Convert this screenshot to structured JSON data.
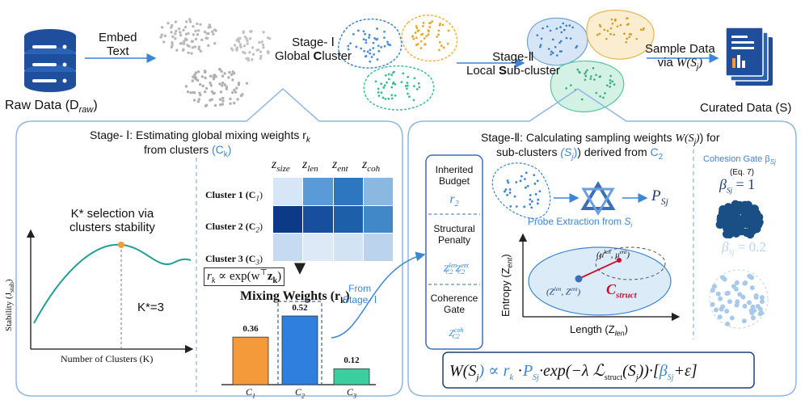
{
  "colors": {
    "accent_blue": "#3b86d6",
    "dark_blue": "#1f4e9c",
    "orange": "#f59a3a",
    "bar_blue": "#2f7fde",
    "teal": "#3bcf9f",
    "red": "#c8102e"
  },
  "top": {
    "raw_data_label": "Raw Data (D",
    "raw_data_sub": "raw",
    "embed_text": [
      "Embed",
      "Text"
    ],
    "stage1_title": "Stage- Ⅰ",
    "stage1_sub_prefix": "Global ",
    "stage1_sub_bold": "C",
    "stage1_sub_rest": "luster",
    "stage2_title": "Stage-Ⅱ",
    "stage2_sub_prefix": "Local ",
    "stage2_sub_bold": "S",
    "stage2_sub_rest": "ub-cluster",
    "sample_data": "Sample Data",
    "via": "via",
    "via_formula": "W(S",
    "via_sub": "j",
    "curated_label": "Curated Data (S)"
  },
  "stage1": {
    "heading_line1": "Stage- Ⅰ: Estimating global  mixing weights r",
    "heading_sub": "k",
    "heading_line2": "from clusters",
    "heading_ck": "(C",
    "heading_ck_sub": "k",
    "k_selection": [
      "K* selection via",
      "clusters stability"
    ],
    "y_axis": "Stability (J",
    "y_axis_sub": "stab",
    "x_axis": "Number of Clusters (K)",
    "kstar": "K*=3",
    "columns": [
      "z",
      "z",
      "z",
      "z"
    ],
    "column_subs": [
      "size",
      "len",
      "ent",
      "coh"
    ],
    "rows": [
      "Cluster 1 (C",
      "Cluster 2 (C",
      "Cluster 3 (C"
    ],
    "row_subs": [
      "1",
      "2",
      "3"
    ],
    "heat_colors": [
      [
        "#d7e6f6",
        "#5a9ad6",
        "#2d76c0",
        "#8ab8e0"
      ],
      [
        "#0d3a86",
        "#174f9e",
        "#1e5faa",
        "#4088c8"
      ],
      [
        "#c6daf1",
        "#dde9f6",
        "#d2e3f4",
        "#bcd3ed"
      ]
    ],
    "formula": "r",
    "formula_rest": "∝ exp(w",
    "formula_end": "z",
    "mixing_title": "Mixing Weights (r",
    "mixing_sub": "k",
    "bars": [
      {
        "label": "C",
        "sub": "1",
        "value": 0.36,
        "value_text": "0.36",
        "color": "#f59a3a"
      },
      {
        "label": "C",
        "sub": "2",
        "value": 0.52,
        "value_text": "0.52",
        "color": "#2f7fde"
      },
      {
        "label": "C",
        "sub": "3",
        "value": 0.12,
        "value_text": "0.12",
        "color": "#3bcf9f"
      }
    ],
    "from_stage": [
      "From",
      "Stage- Ⅰ"
    ]
  },
  "stage2": {
    "heading_line1": "Stage-Ⅱ: Calculating sampling weights",
    "heading_w": "W(S",
    "heading_w_sub": "j",
    "heading_for": ") for",
    "heading_line2": "sub-clusters",
    "heading_sj": "(S",
    "heading_sj_sub": "j",
    "heading_derived": ") derived from",
    "heading_c2": "C",
    "heading_c2_sub": "2",
    "inherited": [
      "Inherited",
      "Budget"
    ],
    "r2": "r",
    "r2_sub": "2",
    "structural": [
      "Structural",
      "Penalty"
    ],
    "z_len": "Z",
    "z_len_sup": "len",
    "z_ent_sup": "ent",
    "c2": "C2",
    "coherence": [
      "Coherence",
      "Gate"
    ],
    "z_coh_sup": "coh",
    "probe": "Probe Extraction from",
    "probe_s": "S",
    "probe_s_sub": "i",
    "p_sj": "P",
    "p_sj_sub": "Sj",
    "entropy_axis": "Entropy (Z",
    "entropy_sub": "ent",
    "length_axis": "Length (Z",
    "length_sub": "len",
    "mu": "μ",
    "c_struct": "C",
    "c_struct_sub": "struct",
    "cohesion": "Cohesion Gate β",
    "cohesion_sub": "Sj",
    "eq": "(Eq. 7)",
    "beta1": "β",
    "beta1_val": "= 1",
    "beta2": "β",
    "beta2_val": "= 0.2",
    "final_formula": "W(S",
    "final_formula_rest": ") ∝ r",
    "final_formula_tail": "·exp(−λ",
    "final_struct": "struct",
    "final_end": "+ε]"
  }
}
